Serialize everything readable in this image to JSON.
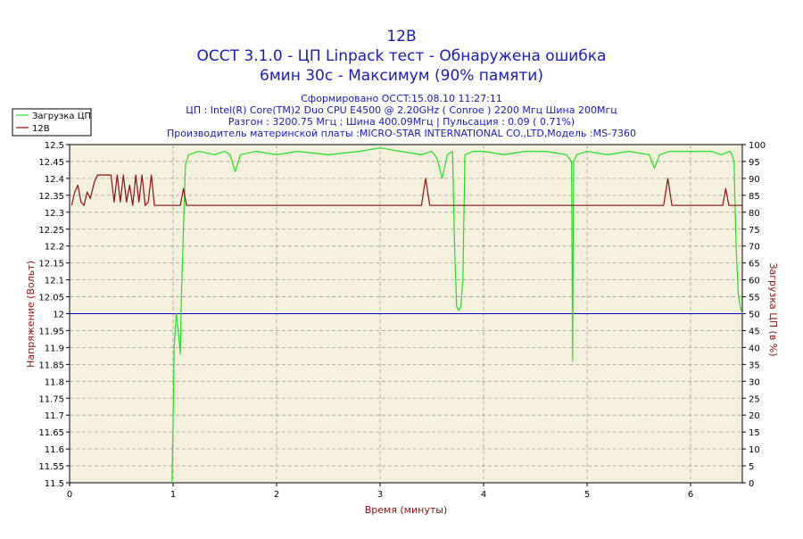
{
  "chart_data": {
    "type": "line",
    "title_lines": [
      "12В",
      "OCCT 3.1.0 - ЦП Linpack тест - Обнаружена ошибка",
      "6мин 30с - Максимум (90% памяти)"
    ],
    "info_lines": [
      "Сформировано OCCT:15.08.10 11:27:11",
      "ЦП : Intel(R) Core(TM)2 Duo CPU E4500 @ 2.20GHz ( Conroe ) 2200 Мгц Шина 200Мгц",
      "Разгон : 3200.75 Мгц ; Шина 400.09Мгц | Пульсация : 0.09 ( 0.71%)",
      "Производитель материнской платы :MICRO-STAR INTERNATIONAL CO.,LTD,Модель :MS-7360"
    ],
    "xlabel": "Время (минуты)",
    "ylabel_left": "Напряжение (Вольт)",
    "ylabel_right": "Загрузка ЦП (в %)",
    "xlim": [
      0,
      6.5
    ],
    "ylim_left": [
      11.5,
      12.5
    ],
    "ylim_right": [
      0,
      100
    ],
    "x_ticks": [
      "0",
      "1",
      "2",
      "3",
      "4",
      "5",
      "6"
    ],
    "y_ticks_left": [
      "12.5",
      "12.45",
      "12.4",
      "12.35",
      "12.3",
      "12.25",
      "12.2",
      "12.15",
      "12.1",
      "12.05",
      "12",
      "11.95",
      "11.9",
      "11.85",
      "11.8",
      "11.75",
      "11.7",
      "11.65",
      "11.6",
      "11.55",
      "11.5"
    ],
    "y_ticks_right": [
      "100",
      "95",
      "90",
      "85",
      "80",
      "75",
      "70",
      "65",
      "60",
      "55",
      "50",
      "45",
      "40",
      "35",
      "30",
      "25",
      "20",
      "15",
      "10",
      "5",
      "0"
    ],
    "grid": true,
    "legend_placement": "top-left",
    "reference_line": {
      "axis": "left",
      "value": 12.0,
      "color": "#0000cc"
    },
    "series": [
      {
        "name": "Загрузка ЦП",
        "axis": "right",
        "color": "#22dd22",
        "points": [
          [
            0.99,
            0
          ],
          [
            1.0,
            18
          ],
          [
            1.01,
            40
          ],
          [
            1.03,
            50
          ],
          [
            1.05,
            45
          ],
          [
            1.07,
            38
          ],
          [
            1.08,
            55
          ],
          [
            1.1,
            75
          ],
          [
            1.12,
            94
          ],
          [
            1.15,
            97
          ],
          [
            1.25,
            98
          ],
          [
            1.4,
            97
          ],
          [
            1.5,
            98
          ],
          [
            1.55,
            97
          ],
          [
            1.6,
            92
          ],
          [
            1.65,
            97
          ],
          [
            1.8,
            98
          ],
          [
            2.0,
            97
          ],
          [
            2.2,
            98
          ],
          [
            2.5,
            97
          ],
          [
            2.8,
            98
          ],
          [
            3.0,
            99
          ],
          [
            3.2,
            98
          ],
          [
            3.4,
            97
          ],
          [
            3.5,
            98
          ],
          [
            3.55,
            96
          ],
          [
            3.6,
            90
          ],
          [
            3.65,
            97
          ],
          [
            3.7,
            98
          ],
          [
            3.72,
            70
          ],
          [
            3.74,
            52
          ],
          [
            3.76,
            51
          ],
          [
            3.78,
            52
          ],
          [
            3.8,
            60
          ],
          [
            3.82,
            97
          ],
          [
            3.9,
            98
          ],
          [
            4.0,
            98
          ],
          [
            4.2,
            97
          ],
          [
            4.4,
            98
          ],
          [
            4.6,
            98
          ],
          [
            4.8,
            97
          ],
          [
            4.85,
            95
          ],
          [
            4.86,
            36
          ],
          [
            4.87,
            95
          ],
          [
            4.9,
            97
          ],
          [
            5.0,
            98
          ],
          [
            5.2,
            97
          ],
          [
            5.4,
            98
          ],
          [
            5.6,
            97
          ],
          [
            5.65,
            93
          ],
          [
            5.7,
            97
          ],
          [
            5.8,
            98
          ],
          [
            6.0,
            98
          ],
          [
            6.2,
            98
          ],
          [
            6.3,
            97
          ],
          [
            6.38,
            98
          ],
          [
            6.4,
            97
          ],
          [
            6.42,
            95
          ],
          [
            6.44,
            70
          ],
          [
            6.46,
            56
          ],
          [
            6.48,
            52
          ],
          [
            6.5,
            50
          ]
        ]
      },
      {
        "name": "12В",
        "axis": "left",
        "color": "#8b1010",
        "points": [
          [
            0.02,
            12.32
          ],
          [
            0.05,
            12.36
          ],
          [
            0.08,
            12.38
          ],
          [
            0.11,
            12.33
          ],
          [
            0.14,
            12.32
          ],
          [
            0.17,
            12.36
          ],
          [
            0.2,
            12.34
          ],
          [
            0.24,
            12.39
          ],
          [
            0.27,
            12.41
          ],
          [
            0.4,
            12.41
          ],
          [
            0.43,
            12.33
          ],
          [
            0.46,
            12.41
          ],
          [
            0.49,
            12.33
          ],
          [
            0.52,
            12.41
          ],
          [
            0.55,
            12.33
          ],
          [
            0.58,
            12.38
          ],
          [
            0.61,
            12.32
          ],
          [
            0.64,
            12.41
          ],
          [
            0.67,
            12.33
          ],
          [
            0.7,
            12.41
          ],
          [
            0.73,
            12.32
          ],
          [
            0.76,
            12.33
          ],
          [
            0.79,
            12.41
          ],
          [
            0.82,
            12.32
          ],
          [
            1.07,
            12.32
          ],
          [
            1.1,
            12.37
          ],
          [
            1.13,
            12.32
          ],
          [
            3.4,
            12.32
          ],
          [
            3.44,
            12.4
          ],
          [
            3.48,
            12.32
          ],
          [
            5.74,
            12.32
          ],
          [
            5.78,
            12.4
          ],
          [
            5.82,
            12.32
          ],
          [
            6.31,
            12.32
          ],
          [
            6.34,
            12.37
          ],
          [
            6.37,
            12.32
          ],
          [
            6.5,
            12.32
          ]
        ]
      }
    ]
  }
}
